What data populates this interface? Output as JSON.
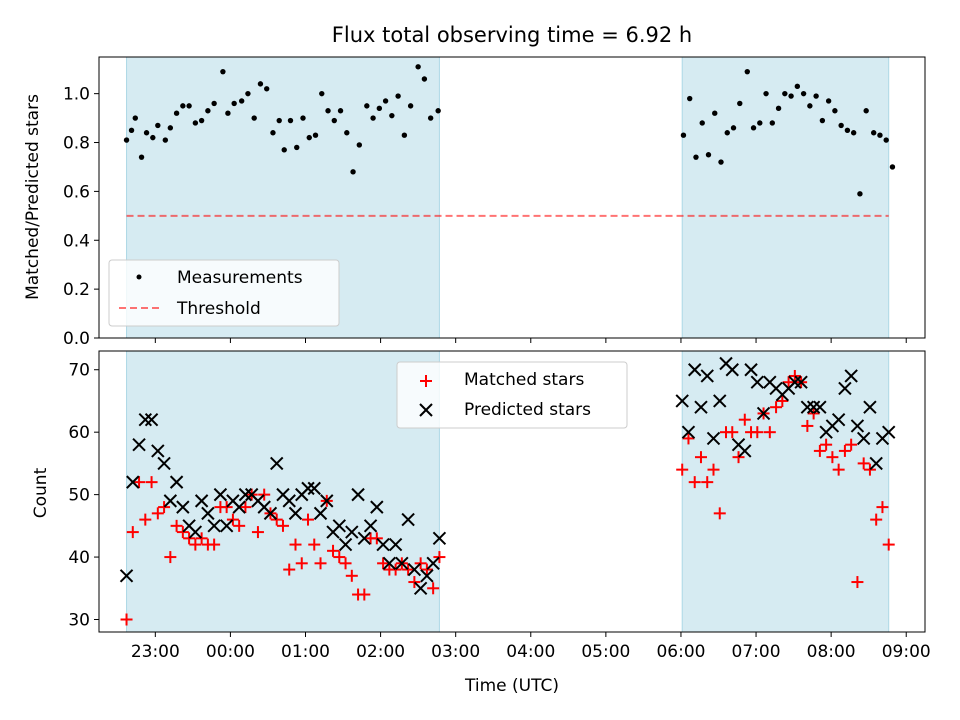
{
  "title": "Flux total observing time = 6.92 h",
  "xlabel": "Time (UTC)",
  "x_ticks": [
    "23:00",
    "00:00",
    "01:00",
    "02:00",
    "03:00",
    "04:00",
    "05:00",
    "06:00",
    "07:00",
    "08:00",
    "09:00"
  ],
  "colors": {
    "shade": "#add8e6",
    "measurement": "#000000",
    "threshold": "#ff0000",
    "matched": "#ff0000",
    "predicted": "#000000"
  },
  "chart_data": [
    {
      "type": "scatter",
      "panel": "top",
      "title": "Flux total observing time = 6.92 h",
      "xlabel": "",
      "ylabel": "Matched/Predicted stars",
      "xlim": [
        "22:15",
        "09:15"
      ],
      "ylim": [
        0,
        1.15
      ],
      "y_ticks": [
        "0.0",
        "0.2",
        "0.4",
        "0.6",
        "0.8",
        "1.0"
      ],
      "legend_position": "lower-left",
      "shaded_intervals": [
        [
          "22:37",
          "02:47"
        ],
        [
          "06:01",
          "08:46"
        ]
      ],
      "threshold": 0.5,
      "series": [
        {
          "name": "Measurements",
          "marker": "dot",
          "points": [
            [
              "22:37",
              0.81
            ],
            [
              "22:41",
              0.85
            ],
            [
              "22:44",
              0.9
            ],
            [
              "22:49",
              0.74
            ],
            [
              "22:53",
              0.84
            ],
            [
              "22:58",
              0.82
            ],
            [
              "23:02",
              0.87
            ],
            [
              "23:08",
              0.81
            ],
            [
              "23:12",
              0.86
            ],
            [
              "23:17",
              0.92
            ],
            [
              "23:22",
              0.95
            ],
            [
              "23:27",
              0.95
            ],
            [
              "23:32",
              0.88
            ],
            [
              "23:37",
              0.89
            ],
            [
              "23:42",
              0.93
            ],
            [
              "23:47",
              0.96
            ],
            [
              "23:54",
              1.09
            ],
            [
              "23:58",
              0.92
            ],
            [
              "00:03",
              0.96
            ],
            [
              "00:09",
              0.97
            ],
            [
              "00:14",
              1.0
            ],
            [
              "00:19",
              0.9
            ],
            [
              "00:24",
              1.04
            ],
            [
              "00:29",
              1.02
            ],
            [
              "00:34",
              0.84
            ],
            [
              "00:39",
              0.89
            ],
            [
              "00:43",
              0.77
            ],
            [
              "00:48",
              0.89
            ],
            [
              "00:53",
              0.78
            ],
            [
              "00:58",
              0.9
            ],
            [
              "01:03",
              0.82
            ],
            [
              "01:08",
              0.83
            ],
            [
              "01:13",
              1.0
            ],
            [
              "01:18",
              0.93
            ],
            [
              "01:23",
              0.89
            ],
            [
              "01:28",
              0.93
            ],
            [
              "01:33",
              0.84
            ],
            [
              "01:38",
              0.68
            ],
            [
              "01:43",
              0.79
            ],
            [
              "01:49",
              0.95
            ],
            [
              "01:54",
              0.9
            ],
            [
              "01:59",
              0.94
            ],
            [
              "02:04",
              0.97
            ],
            [
              "02:09",
              0.91
            ],
            [
              "02:14",
              0.99
            ],
            [
              "02:19",
              0.83
            ],
            [
              "02:24",
              0.95
            ],
            [
              "02:30",
              1.11
            ],
            [
              "02:35",
              1.06
            ],
            [
              "02:40",
              0.9
            ],
            [
              "02:46",
              0.93
            ],
            [
              "06:02",
              0.83
            ],
            [
              "06:07",
              0.98
            ],
            [
              "06:12",
              0.74
            ],
            [
              "06:17",
              0.88
            ],
            [
              "06:22",
              0.75
            ],
            [
              "06:27",
              0.92
            ],
            [
              "06:32",
              0.72
            ],
            [
              "06:37",
              0.84
            ],
            [
              "06:42",
              0.86
            ],
            [
              "06:47",
              0.96
            ],
            [
              "06:53",
              1.09
            ],
            [
              "06:58",
              0.86
            ],
            [
              "07:03",
              0.88
            ],
            [
              "07:08",
              1.0
            ],
            [
              "07:13",
              0.88
            ],
            [
              "07:18",
              0.94
            ],
            [
              "07:23",
              1.0
            ],
            [
              "07:28",
              0.99
            ],
            [
              "07:33",
              1.03
            ],
            [
              "07:38",
              1.0
            ],
            [
              "07:43",
              0.95
            ],
            [
              "07:48",
              0.99
            ],
            [
              "07:53",
              0.89
            ],
            [
              "07:58",
              0.97
            ],
            [
              "08:03",
              0.93
            ],
            [
              "08:08",
              0.87
            ],
            [
              "08:13",
              0.85
            ],
            [
              "08:18",
              0.84
            ],
            [
              "08:23",
              0.59
            ],
            [
              "08:28",
              0.93
            ],
            [
              "08:34",
              0.84
            ],
            [
              "08:39",
              0.83
            ],
            [
              "08:44",
              0.81
            ],
            [
              "08:49",
              0.7
            ]
          ]
        },
        {
          "name": "Threshold",
          "marker": "dashed-line",
          "value": 0.5,
          "x_range": [
            "22:37",
            "08:46"
          ]
        }
      ]
    },
    {
      "type": "scatter",
      "panel": "bottom",
      "xlabel": "Time (UTC)",
      "ylabel": "Count",
      "xlim": [
        "22:15",
        "09:15"
      ],
      "ylim": [
        28,
        73
      ],
      "y_ticks": [
        "30",
        "40",
        "50",
        "60",
        "70"
      ],
      "legend_position": "upper-center",
      "shaded_intervals": [
        [
          "22:37",
          "02:47"
        ],
        [
          "06:01",
          "08:46"
        ]
      ],
      "series": [
        {
          "name": "Matched stars",
          "marker": "plus",
          "points": [
            [
              "22:37",
              30
            ],
            [
              "22:42",
              44
            ],
            [
              "22:47",
              52
            ],
            [
              "22:52",
              46
            ],
            [
              "22:57",
              52
            ],
            [
              "23:02",
              47
            ],
            [
              "23:07",
              48
            ],
            [
              "23:12",
              40
            ],
            [
              "23:17",
              45
            ],
            [
              "23:22",
              44
            ],
            [
              "23:27",
              43
            ],
            [
              "23:32",
              42
            ],
            [
              "23:37",
              43
            ],
            [
              "23:42",
              42
            ],
            [
              "23:47",
              42
            ],
            [
              "23:52",
              48
            ],
            [
              "23:57",
              48
            ],
            [
              "00:02",
              46
            ],
            [
              "00:07",
              45
            ],
            [
              "00:12",
              48
            ],
            [
              "00:17",
              50
            ],
            [
              "00:22",
              44
            ],
            [
              "00:27",
              50
            ],
            [
              "00:32",
              47
            ],
            [
              "00:37",
              46
            ],
            [
              "00:42",
              45
            ],
            [
              "00:47",
              38
            ],
            [
              "00:52",
              42
            ],
            [
              "00:57",
              39
            ],
            [
              "01:02",
              46
            ],
            [
              "01:07",
              42
            ],
            [
              "01:12",
              39
            ],
            [
              "01:17",
              49
            ],
            [
              "01:22",
              41
            ],
            [
              "01:27",
              40
            ],
            [
              "01:32",
              39
            ],
            [
              "01:37",
              37
            ],
            [
              "01:42",
              34
            ],
            [
              "01:47",
              34
            ],
            [
              "01:52",
              43
            ],
            [
              "01:57",
              43
            ],
            [
              "02:02",
              39
            ],
            [
              "02:07",
              38
            ],
            [
              "02:12",
              38
            ],
            [
              "02:17",
              39
            ],
            [
              "02:22",
              38
            ],
            [
              "02:27",
              36
            ],
            [
              "02:32",
              39
            ],
            [
              "02:37",
              38
            ],
            [
              "02:42",
              35
            ],
            [
              "02:47",
              40
            ],
            [
              "06:01",
              54
            ],
            [
              "06:06",
              59
            ],
            [
              "06:11",
              52
            ],
            [
              "06:16",
              56
            ],
            [
              "06:21",
              52
            ],
            [
              "06:26",
              54
            ],
            [
              "06:31",
              47
            ],
            [
              "06:36",
              60
            ],
            [
              "06:41",
              60
            ],
            [
              "06:46",
              56
            ],
            [
              "06:51",
              62
            ],
            [
              "06:56",
              60
            ],
            [
              "07:01",
              60
            ],
            [
              "07:06",
              63
            ],
            [
              "07:11",
              60
            ],
            [
              "07:16",
              64
            ],
            [
              "07:21",
              65
            ],
            [
              "07:26",
              68
            ],
            [
              "07:31",
              69
            ],
            [
              "07:36",
              68
            ],
            [
              "07:41",
              61
            ],
            [
              "07:46",
              63
            ],
            [
              "07:51",
              57
            ],
            [
              "07:56",
              58
            ],
            [
              "08:01",
              56
            ],
            [
              "08:06",
              54
            ],
            [
              "08:11",
              57
            ],
            [
              "08:16",
              58
            ],
            [
              "08:21",
              36
            ],
            [
              "08:26",
              55
            ],
            [
              "08:31",
              54
            ],
            [
              "08:36",
              46
            ],
            [
              "08:41",
              48
            ],
            [
              "08:46",
              42
            ]
          ]
        },
        {
          "name": "Predicted stars",
          "marker": "x",
          "points": [
            [
              "22:37",
              37
            ],
            [
              "22:42",
              52
            ],
            [
              "22:47",
              58
            ],
            [
              "22:52",
              62
            ],
            [
              "22:57",
              62
            ],
            [
              "23:02",
              57
            ],
            [
              "23:07",
              55
            ],
            [
              "23:12",
              49
            ],
            [
              "23:17",
              52
            ],
            [
              "23:22",
              48
            ],
            [
              "23:27",
              45
            ],
            [
              "23:32",
              44
            ],
            [
              "23:37",
              49
            ],
            [
              "23:42",
              47
            ],
            [
              "23:47",
              45
            ],
            [
              "23:52",
              50
            ],
            [
              "23:57",
              45
            ],
            [
              "00:02",
              49
            ],
            [
              "00:07",
              48
            ],
            [
              "00:12",
              50
            ],
            [
              "00:17",
              50
            ],
            [
              "00:22",
              49
            ],
            [
              "00:27",
              48
            ],
            [
              "00:32",
              47
            ],
            [
              "00:37",
              55
            ],
            [
              "00:42",
              50
            ],
            [
              "00:47",
              49
            ],
            [
              "00:52",
              47
            ],
            [
              "00:57",
              50
            ],
            [
              "01:02",
              51
            ],
            [
              "01:07",
              51
            ],
            [
              "01:12",
              47
            ],
            [
              "01:17",
              49
            ],
            [
              "01:22",
              44
            ],
            [
              "01:27",
              45
            ],
            [
              "01:32",
              42
            ],
            [
              "01:37",
              44
            ],
            [
              "01:42",
              50
            ],
            [
              "01:47",
              43
            ],
            [
              "01:52",
              45
            ],
            [
              "01:57",
              48
            ],
            [
              "02:02",
              42
            ],
            [
              "02:07",
              39
            ],
            [
              "02:12",
              42
            ],
            [
              "02:17",
              39
            ],
            [
              "02:22",
              46
            ],
            [
              "02:27",
              38
            ],
            [
              "02:32",
              35
            ],
            [
              "02:37",
              37
            ],
            [
              "02:42",
              39
            ],
            [
              "02:47",
              43
            ],
            [
              "06:01",
              65
            ],
            [
              "06:06",
              60
            ],
            [
              "06:11",
              70
            ],
            [
              "06:16",
              64
            ],
            [
              "06:21",
              69
            ],
            [
              "06:26",
              59
            ],
            [
              "06:31",
              65
            ],
            [
              "06:36",
              71
            ],
            [
              "06:41",
              70
            ],
            [
              "06:46",
              58
            ],
            [
              "06:51",
              57
            ],
            [
              "06:56",
              70
            ],
            [
              "07:01",
              68
            ],
            [
              "07:06",
              63
            ],
            [
              "07:11",
              68
            ],
            [
              "07:16",
              67
            ],
            [
              "07:21",
              66
            ],
            [
              "07:26",
              67
            ],
            [
              "07:31",
              68
            ],
            [
              "07:36",
              68
            ],
            [
              "07:41",
              64
            ],
            [
              "07:46",
              64
            ],
            [
              "07:51",
              64
            ],
            [
              "07:56",
              60
            ],
            [
              "08:01",
              61
            ],
            [
              "08:06",
              62
            ],
            [
              "08:11",
              67
            ],
            [
              "08:16",
              69
            ],
            [
              "08:21",
              61
            ],
            [
              "08:26",
              59
            ],
            [
              "08:31",
              64
            ],
            [
              "08:36",
              55
            ],
            [
              "08:41",
              59
            ],
            [
              "08:46",
              60
            ]
          ]
        }
      ]
    }
  ]
}
